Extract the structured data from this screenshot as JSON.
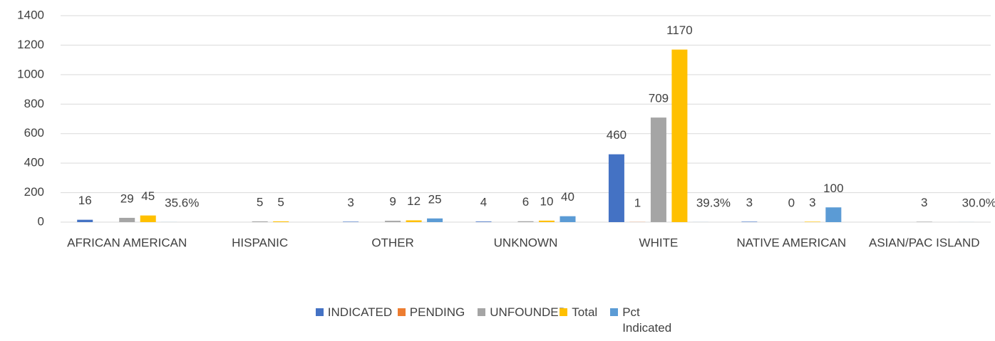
{
  "chart_data": {
    "type": "bar",
    "categories": [
      "AFRICAN AMERICAN",
      "HISPANIC",
      "OTHER",
      "UNKNOWN",
      "WHITE",
      "NATIVE AMERICAN",
      "ASIAN/PAC ISLAND"
    ],
    "series": [
      {
        "name": "INDICATED",
        "color": "#4472c4",
        "values": [
          16,
          null,
          3,
          4,
          460,
          3,
          null
        ]
      },
      {
        "name": "PENDING",
        "color": "#ed7d31",
        "values": [
          null,
          null,
          null,
          null,
          1,
          null,
          null
        ]
      },
      {
        "name": "UNFOUNDED",
        "color": "#a5a5a5",
        "values": [
          29,
          5,
          9,
          6,
          709,
          0,
          3
        ]
      },
      {
        "name": "Total",
        "color": "#ffc000",
        "values": [
          45,
          5,
          12,
          10,
          1170,
          3,
          null
        ]
      },
      {
        "name": "Pct Indicated",
        "color": "#5b9bd5",
        "values": [
          0.356,
          null,
          25,
          40,
          0.393,
          100,
          0.3
        ],
        "value_labels": [
          "35.6%",
          null,
          "25",
          "40",
          "39.3%",
          "100",
          "30.0%"
        ]
      }
    ],
    "ylim": [
      0,
      1400
    ],
    "yticks": [
      0,
      200,
      400,
      600,
      800,
      1000,
      1200,
      1400
    ],
    "grid": true,
    "legend": "bottom"
  }
}
